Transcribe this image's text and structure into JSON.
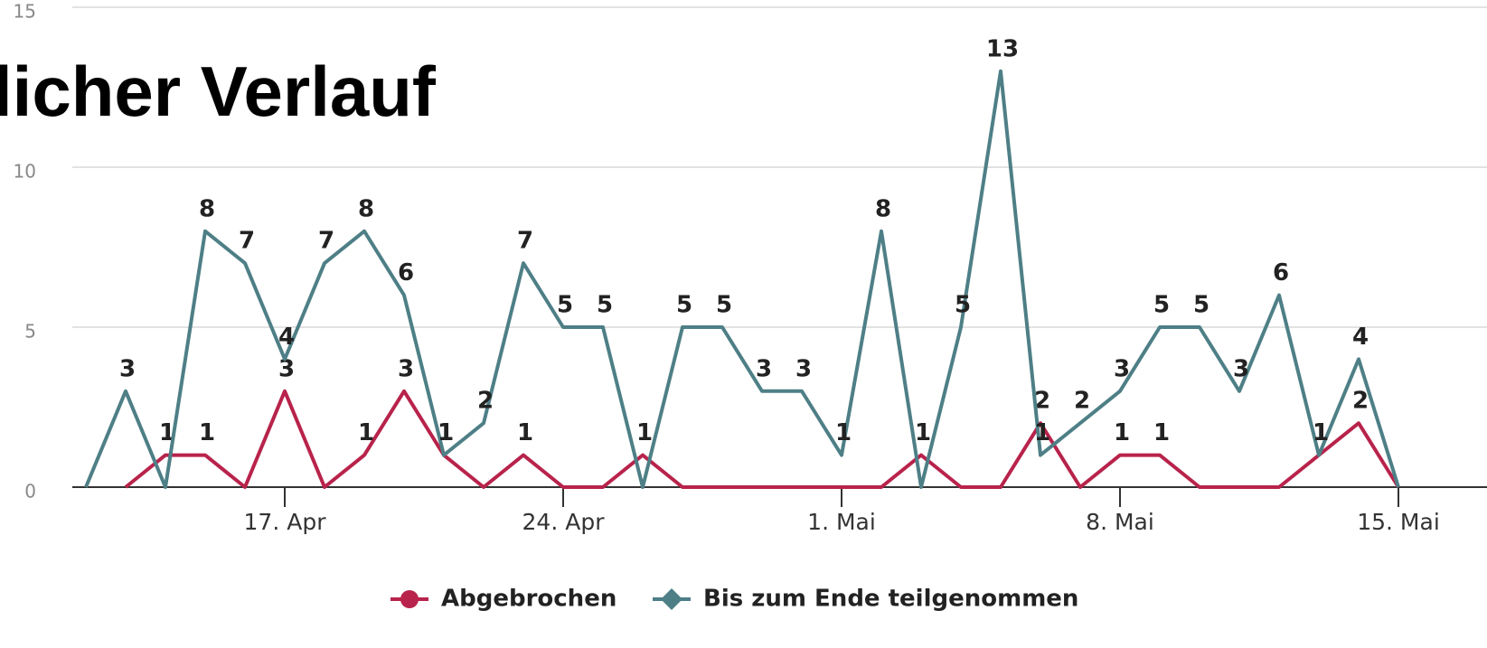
{
  "chart_data": {
    "type": "line",
    "title": "licher Verlauf",
    "categories": [
      null,
      null,
      null,
      null,
      null,
      "17. Apr",
      null,
      null,
      null,
      null,
      null,
      null,
      "24. Apr",
      null,
      null,
      null,
      null,
      null,
      null,
      "1. Mai",
      null,
      null,
      null,
      null,
      null,
      null,
      "8. Mai",
      null,
      null,
      null,
      null,
      null,
      null,
      "15. Mai"
    ],
    "series": [
      {
        "name": "Abgebrochen",
        "color": "#b8234b",
        "marker": "circle",
        "values": [
          null,
          0,
          1,
          1,
          0,
          3,
          0,
          1,
          3,
          1,
          0,
          1,
          0,
          0,
          1,
          0,
          0,
          0,
          0,
          0,
          0,
          1,
          0,
          0,
          2,
          0,
          1,
          1,
          0,
          0,
          0,
          1,
          2,
          0
        ]
      },
      {
        "name": "Bis zum Ende teilgenommen",
        "color": "#4e7f86",
        "marker": "diamond",
        "values": [
          0,
          3,
          0,
          8,
          7,
          4,
          7,
          8,
          6,
          1,
          2,
          7,
          5,
          5,
          0,
          5,
          5,
          3,
          3,
          1,
          8,
          0,
          5,
          13,
          1,
          2,
          3,
          5,
          5,
          3,
          6,
          1,
          4,
          0
        ]
      }
    ],
    "ylim": [
      0,
      15
    ],
    "yticks": [
      0,
      5,
      10,
      15
    ],
    "grid": true
  }
}
